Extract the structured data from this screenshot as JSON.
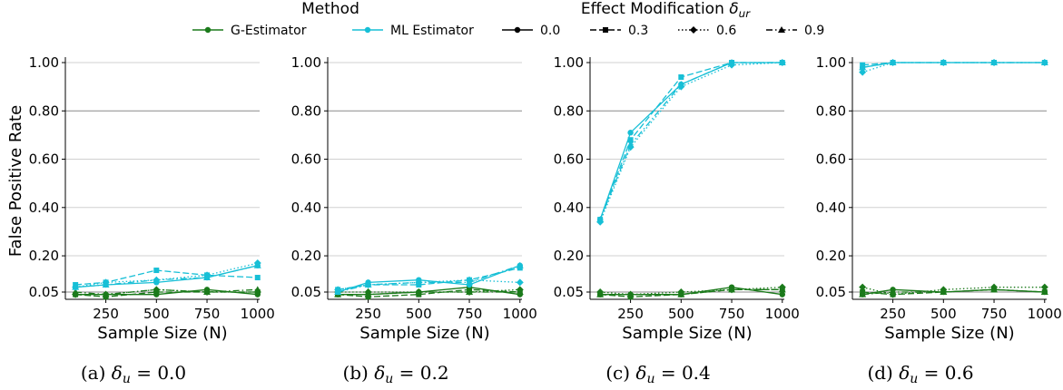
{
  "legend": {
    "method_title": "Method",
    "effect_title": "Effect Modification δ_ur",
    "methods": [
      {
        "label": "G-Estimator",
        "color": "#1b7a1b"
      },
      {
        "label": "ML Estimator",
        "color": "#17bfd6"
      }
    ],
    "effects": [
      {
        "label": "0.0",
        "marker": "circle",
        "dash": "solid"
      },
      {
        "label": "0.3",
        "marker": "square",
        "dash": "dashed"
      },
      {
        "label": "0.6",
        "marker": "diamond",
        "dash": "dotted"
      },
      {
        "label": "0.9",
        "marker": "triangle",
        "dash": "dashdot"
      }
    ]
  },
  "chart_data": [
    {
      "type": "line",
      "caption": "(a) δ_u = 0.0",
      "xlabel": "Sample Size (N)",
      "ylabel": "False Positive Rate",
      "x": [
        100,
        250,
        500,
        750,
        1000
      ],
      "xticks": [
        "250",
        "500",
        "750",
        "1000"
      ],
      "yticks": [
        "0.05",
        "0.20",
        "0.40",
        "0.60",
        "0.80",
        "1.00"
      ],
      "ylim": [
        0.02,
        1.0
      ],
      "series": [
        {
          "method": "G-Estimator",
          "effect": "0.0",
          "values": [
            0.04,
            0.04,
            0.04,
            0.06,
            0.04
          ]
        },
        {
          "method": "G-Estimator",
          "effect": "0.3",
          "values": [
            0.04,
            0.03,
            0.05,
            0.05,
            0.05
          ]
        },
        {
          "method": "G-Estimator",
          "effect": "0.6",
          "values": [
            0.04,
            0.04,
            0.06,
            0.05,
            0.05
          ]
        },
        {
          "method": "G-Estimator",
          "effect": "0.9",
          "values": [
            0.05,
            0.04,
            0.06,
            0.05,
            0.06
          ]
        },
        {
          "method": "ML Estimator",
          "effect": "0.0",
          "values": [
            0.07,
            0.08,
            0.09,
            0.11,
            0.16
          ]
        },
        {
          "method": "ML Estimator",
          "effect": "0.3",
          "values": [
            0.08,
            0.09,
            0.14,
            0.12,
            0.11
          ]
        },
        {
          "method": "ML Estimator",
          "effect": "0.6",
          "values": [
            0.07,
            0.09,
            0.1,
            0.12,
            0.17
          ]
        },
        {
          "method": "ML Estimator",
          "effect": "0.9",
          "values": [
            0.07,
            0.08,
            0.1,
            0.11,
            0.16
          ]
        }
      ]
    },
    {
      "type": "line",
      "caption": "(b) δ_u = 0.2",
      "xlabel": "Sample Size (N)",
      "ylabel": "",
      "x": [
        100,
        250,
        500,
        750,
        1000
      ],
      "xticks": [
        "250",
        "500",
        "750",
        "1000"
      ],
      "yticks": [
        "0.05",
        "0.20",
        "0.40",
        "0.60",
        "0.80",
        "1.00"
      ],
      "ylim": [
        0.02,
        1.0
      ],
      "series": [
        {
          "method": "G-Estimator",
          "effect": "0.0",
          "values": [
            0.04,
            0.04,
            0.05,
            0.07,
            0.04
          ]
        },
        {
          "method": "G-Estimator",
          "effect": "0.3",
          "values": [
            0.04,
            0.03,
            0.04,
            0.06,
            0.05
          ]
        },
        {
          "method": "G-Estimator",
          "effect": "0.6",
          "values": [
            0.05,
            0.05,
            0.05,
            0.05,
            0.06
          ]
        },
        {
          "method": "G-Estimator",
          "effect": "0.9",
          "values": [
            0.04,
            0.04,
            0.05,
            0.05,
            0.05
          ]
        },
        {
          "method": "ML Estimator",
          "effect": "0.0",
          "values": [
            0.05,
            0.09,
            0.1,
            0.08,
            0.16
          ]
        },
        {
          "method": "ML Estimator",
          "effect": "0.3",
          "values": [
            0.06,
            0.08,
            0.08,
            0.1,
            0.15
          ]
        },
        {
          "method": "ML Estimator",
          "effect": "0.6",
          "values": [
            0.06,
            0.08,
            0.09,
            0.1,
            0.09
          ]
        },
        {
          "method": "ML Estimator",
          "effect": "0.9",
          "values": [
            0.05,
            0.08,
            0.09,
            0.09,
            0.16
          ]
        }
      ]
    },
    {
      "type": "line",
      "caption": "(c) δ_u = 0.4",
      "xlabel": "Sample Size (N)",
      "ylabel": "",
      "x": [
        100,
        250,
        500,
        750,
        1000
      ],
      "xticks": [
        "250",
        "500",
        "750",
        "1000"
      ],
      "yticks": [
        "0.05",
        "0.20",
        "0.40",
        "0.60",
        "0.80",
        "1.00"
      ],
      "ylim": [
        0.02,
        1.0
      ],
      "series": [
        {
          "method": "G-Estimator",
          "effect": "0.0",
          "values": [
            0.04,
            0.04,
            0.04,
            0.07,
            0.04
          ]
        },
        {
          "method": "G-Estimator",
          "effect": "0.3",
          "values": [
            0.04,
            0.03,
            0.04,
            0.06,
            0.06
          ]
        },
        {
          "method": "G-Estimator",
          "effect": "0.6",
          "values": [
            0.05,
            0.04,
            0.05,
            0.06,
            0.07
          ]
        },
        {
          "method": "G-Estimator",
          "effect": "0.9",
          "values": [
            0.04,
            0.04,
            0.04,
            0.06,
            0.06
          ]
        },
        {
          "method": "ML Estimator",
          "effect": "0.0",
          "values": [
            0.35,
            0.71,
            0.91,
            1.0,
            1.0
          ]
        },
        {
          "method": "ML Estimator",
          "effect": "0.3",
          "values": [
            0.35,
            0.68,
            0.94,
            1.0,
            1.0
          ]
        },
        {
          "method": "ML Estimator",
          "effect": "0.6",
          "values": [
            0.34,
            0.65,
            0.9,
            0.99,
            1.0
          ]
        },
        {
          "method": "ML Estimator",
          "effect": "0.9",
          "values": [
            0.35,
            0.66,
            0.91,
            1.0,
            1.0
          ]
        }
      ]
    },
    {
      "type": "line",
      "caption": "(d) δ_u = 0.6",
      "xlabel": "Sample Size (N)",
      "ylabel": "",
      "x": [
        100,
        250,
        500,
        750,
        1000
      ],
      "xticks": [
        "250",
        "500",
        "750",
        "1000"
      ],
      "yticks": [
        "0.05",
        "0.20",
        "0.40",
        "0.60",
        "0.80",
        "1.00"
      ],
      "ylim": [
        0.02,
        1.0
      ],
      "series": [
        {
          "method": "G-Estimator",
          "effect": "0.0",
          "values": [
            0.04,
            0.06,
            0.05,
            0.06,
            0.05
          ]
        },
        {
          "method": "G-Estimator",
          "effect": "0.3",
          "values": [
            0.05,
            0.04,
            0.05,
            0.06,
            0.05
          ]
        },
        {
          "method": "G-Estimator",
          "effect": "0.6",
          "values": [
            0.07,
            0.04,
            0.06,
            0.07,
            0.07
          ]
        },
        {
          "method": "G-Estimator",
          "effect": "0.9",
          "values": [
            0.04,
            0.05,
            0.05,
            0.06,
            0.05
          ]
        },
        {
          "method": "ML Estimator",
          "effect": "0.0",
          "values": [
            0.98,
            1.0,
            1.0,
            1.0,
            1.0
          ]
        },
        {
          "method": "ML Estimator",
          "effect": "0.3",
          "values": [
            0.99,
            1.0,
            1.0,
            1.0,
            1.0
          ]
        },
        {
          "method": "ML Estimator",
          "effect": "0.6",
          "values": [
            0.96,
            1.0,
            1.0,
            1.0,
            1.0
          ]
        },
        {
          "method": "ML Estimator",
          "effect": "0.9",
          "values": [
            0.98,
            1.0,
            1.0,
            1.0,
            1.0
          ]
        }
      ]
    }
  ]
}
